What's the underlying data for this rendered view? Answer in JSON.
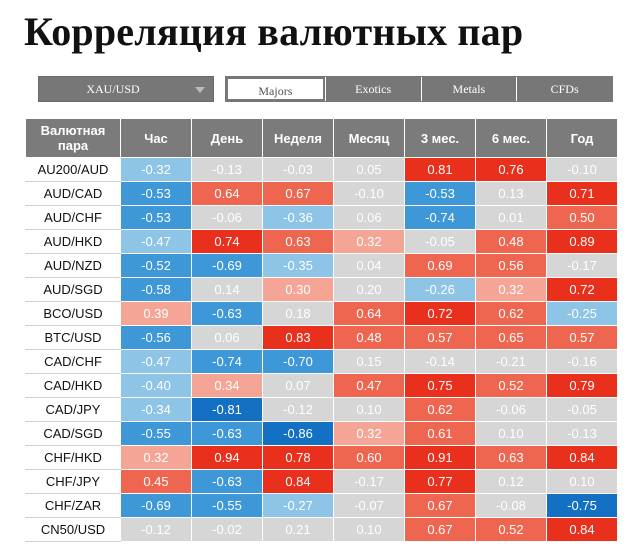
{
  "page": {
    "title": "Корреляция валютных пар"
  },
  "symbol_select": {
    "value": "XAU/USD"
  },
  "tabs": [
    {
      "label": "Majors",
      "active": true
    },
    {
      "label": "Exotics",
      "active": false
    },
    {
      "label": "Metals",
      "active": false
    },
    {
      "label": "CFDs",
      "active": false
    }
  ],
  "table": {
    "headers": [
      "Валютная пара",
      "Час",
      "День",
      "Неделя",
      "Месяц",
      "3 мес.",
      "6 мес.",
      "Год"
    ],
    "rows": [
      {
        "pair": "AU200/AUD",
        "values": [
          "-0.32",
          "-0.13",
          "-0.03",
          "0.05",
          "0.81",
          "0.76",
          "-0.10"
        ]
      },
      {
        "pair": "AUD/CAD",
        "values": [
          "-0.53",
          "0.64",
          "0.67",
          "-0.10",
          "-0.53",
          "0.13",
          "0.71"
        ]
      },
      {
        "pair": "AUD/CHF",
        "values": [
          "-0.53",
          "-0.06",
          "-0.36",
          "0.06",
          "-0.74",
          "0.01",
          "0.50"
        ]
      },
      {
        "pair": "AUD/HKD",
        "values": [
          "-0.47",
          "0.74",
          "0.63",
          "0.32",
          "-0.05",
          "0.48",
          "0.89"
        ]
      },
      {
        "pair": "AUD/NZD",
        "values": [
          "-0.52",
          "-0.69",
          "-0.35",
          "0.04",
          "0.69",
          "0.56",
          "-0.17"
        ]
      },
      {
        "pair": "AUD/SGD",
        "values": [
          "-0.58",
          "0.14",
          "0.30",
          "0.20",
          "-0.26",
          "0.32",
          "0.72"
        ]
      },
      {
        "pair": "BCO/USD",
        "values": [
          "0.39",
          "-0.63",
          "0.18",
          "0.64",
          "0.72",
          "0.62",
          "-0.25"
        ]
      },
      {
        "pair": "BTC/USD",
        "values": [
          "-0.56",
          "0.06",
          "0.83",
          "0.48",
          "0.57",
          "0.65",
          "0.57"
        ]
      },
      {
        "pair": "CAD/CHF",
        "values": [
          "-0.47",
          "-0.74",
          "-0.70",
          "0.15",
          "-0.14",
          "-0.21",
          "-0.16"
        ]
      },
      {
        "pair": "CAD/HKD",
        "values": [
          "-0.40",
          "0.34",
          "0.07",
          "0.47",
          "0.75",
          "0.52",
          "0.79"
        ]
      },
      {
        "pair": "CAD/JPY",
        "values": [
          "-0.34",
          "-0.81",
          "-0.12",
          "0.10",
          "0.62",
          "-0.06",
          "-0.05"
        ]
      },
      {
        "pair": "CAD/SGD",
        "values": [
          "-0.55",
          "-0.63",
          "-0.86",
          "0.32",
          "0.61",
          "0.10",
          "-0.13"
        ]
      },
      {
        "pair": "CHF/HKD",
        "values": [
          "0.32",
          "0.94",
          "0.78",
          "0.60",
          "0.91",
          "0.63",
          "0.84"
        ]
      },
      {
        "pair": "CHF/JPY",
        "values": [
          "0.45",
          "-0.63",
          "0.84",
          "-0.17",
          "0.77",
          "0.12",
          "0.10"
        ]
      },
      {
        "pair": "CHF/ZAR",
        "values": [
          "-0.69",
          "-0.55",
          "-0.27",
          "-0.07",
          "0.67",
          "-0.08",
          "-0.75"
        ]
      },
      {
        "pair": "CN50/USD",
        "values": [
          "-0.12",
          "-0.02",
          "0.21",
          "0.10",
          "0.67",
          "0.52",
          "0.84"
        ]
      }
    ]
  },
  "colors": {
    "neutral": "#d6d6d6",
    "positive_weak": "#f5a595",
    "positive_mid": "#ef6650",
    "positive_strong": "#e8301c",
    "negative_weak": "#8ec4e6",
    "negative_mid": "#3e98d8",
    "negative_strong": "#1470c2"
  }
}
